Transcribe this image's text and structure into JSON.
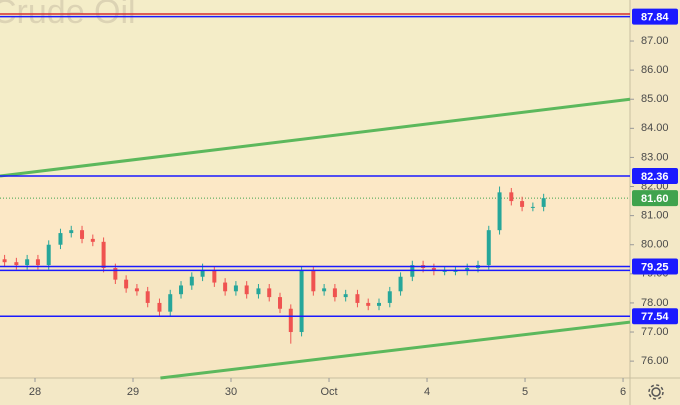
{
  "chart_data": {
    "type": "candlestick",
    "watermark": "Crude Oil",
    "xlim": [
      -0.357,
      6.071
    ],
    "ylim": [
      75.42,
      88.41
    ],
    "xticks": [
      {
        "value": 0,
        "label": "28"
      },
      {
        "value": 1,
        "label": "29"
      },
      {
        "value": 2,
        "label": "30"
      },
      {
        "value": 3,
        "label": "Oct"
      },
      {
        "value": 4,
        "label": "4"
      },
      {
        "value": 5,
        "label": "5"
      },
      {
        "value": 6,
        "label": "6"
      }
    ],
    "yticks": [
      {
        "value": 76,
        "label": "76.00"
      },
      {
        "value": 77,
        "label": "77.00"
      },
      {
        "value": 78,
        "label": "78.00"
      },
      {
        "value": 79,
        "label": "79.00"
      },
      {
        "value": 80,
        "label": "80.00"
      },
      {
        "value": 81,
        "label": "81.00"
      },
      {
        "value": 82,
        "label": "82.00"
      },
      {
        "value": 83,
        "label": "83.00"
      },
      {
        "value": 84,
        "label": "84.00"
      },
      {
        "value": 85,
        "label": "85.00"
      },
      {
        "value": 86,
        "label": "86.00"
      },
      {
        "value": 87,
        "label": "87.00"
      }
    ],
    "up_color": "#26a69a",
    "down_color": "#ef5350",
    "x": [
      -0.31,
      -0.19,
      -0.08,
      0.03,
      0.14,
      0.26,
      0.37,
      0.48,
      0.59,
      0.7,
      0.82,
      0.93,
      1.04,
      1.15,
      1.27,
      1.38,
      1.49,
      1.6,
      1.71,
      1.83,
      1.94,
      2.05,
      2.16,
      2.28,
      2.39,
      2.5,
      2.61,
      2.72,
      2.84,
      2.95,
      3.06,
      3.17,
      3.29,
      3.4,
      3.51,
      3.62,
      3.73,
      3.85,
      3.96,
      4.07,
      4.18,
      4.29,
      4.41,
      4.52,
      4.63,
      4.74,
      4.86,
      4.97,
      5.08,
      5.19
    ],
    "open": [
      79.5,
      79.4,
      79.3,
      79.5,
      79.3,
      80.0,
      80.4,
      80.5,
      80.2,
      80.1,
      79.2,
      78.8,
      78.5,
      78.4,
      78.0,
      77.7,
      78.3,
      78.6,
      78.9,
      79.1,
      78.7,
      78.4,
      78.6,
      78.3,
      78.5,
      78.2,
      77.8,
      77.0,
      79.1,
      78.4,
      78.5,
      78.2,
      78.3,
      78.0,
      77.9,
      78.0,
      78.4,
      78.9,
      79.3,
      79.2,
      79.1,
      79.1,
      79.1,
      79.2,
      79.3,
      80.5,
      81.8,
      81.5,
      81.3,
      81.3
    ],
    "high": [
      79.65,
      79.55,
      79.65,
      79.65,
      80.15,
      80.55,
      80.65,
      80.65,
      80.35,
      80.25,
      79.35,
      78.95,
      78.65,
      78.55,
      78.15,
      78.45,
      78.75,
      79.05,
      79.35,
      79.25,
      78.85,
      78.75,
      78.75,
      78.65,
      78.65,
      78.35,
      77.95,
      79.25,
      79.25,
      78.65,
      78.65,
      78.45,
      78.45,
      78.15,
      78.15,
      78.55,
      79.05,
      79.45,
      79.45,
      79.35,
      79.25,
      79.25,
      79.35,
      79.45,
      80.65,
      82.0,
      81.95,
      81.65,
      81.45,
      81.75
    ],
    "low": [
      79.25,
      79.15,
      79.15,
      79.15,
      79.15,
      79.85,
      80.25,
      80.05,
      79.95,
      79.05,
      78.65,
      78.35,
      78.25,
      77.85,
      77.55,
      77.55,
      78.15,
      78.45,
      78.75,
      78.55,
      78.25,
      78.25,
      78.15,
      78.15,
      78.05,
      77.65,
      76.6,
      76.85,
      78.25,
      78.25,
      78.05,
      78.05,
      77.85,
      77.75,
      77.75,
      77.85,
      78.25,
      78.75,
      79.05,
      78.95,
      78.95,
      78.95,
      78.95,
      79.05,
      79.15,
      80.35,
      81.35,
      81.15,
      81.15,
      81.15
    ],
    "close": [
      79.4,
      79.3,
      79.5,
      79.3,
      80.0,
      80.4,
      80.5,
      80.2,
      80.1,
      79.2,
      78.8,
      78.5,
      78.4,
      78.0,
      77.7,
      78.3,
      78.6,
      78.9,
      79.1,
      78.7,
      78.4,
      78.6,
      78.3,
      78.5,
      78.2,
      77.8,
      77.0,
      79.1,
      78.4,
      78.5,
      78.2,
      78.3,
      78.0,
      77.9,
      78.0,
      78.4,
      78.9,
      79.3,
      79.2,
      79.1,
      79.1,
      79.1,
      79.2,
      79.3,
      80.5,
      81.8,
      81.5,
      81.3,
      81.3,
      81.6
    ],
    "levels": [
      {
        "value": 87.93,
        "color": "#d32f2f"
      },
      {
        "value": 87.84,
        "label": 87.84,
        "color": "#1a1aff"
      },
      {
        "value": 82.36,
        "label": 82.36,
        "color": "#1a1aff"
      },
      {
        "value": 79.25,
        "label": 79.25,
        "color": "#1a1aff"
      },
      {
        "value": 79.12,
        "color": "#1a1aff"
      },
      {
        "value": 77.54,
        "label": 77.54,
        "color": "#1a1aff"
      }
    ],
    "trendlines": [
      {
        "x": [
          -0.357,
          6.071
        ],
        "values": [
          82.36,
          85.0
        ],
        "color": "#5cb85c"
      },
      {
        "x": [
          1.28,
          6.071
        ],
        "values": [
          75.42,
          77.34
        ],
        "color": "#5cb85c"
      }
    ],
    "last_price": {
      "value": 81.6,
      "label": "81.60",
      "color": "#3fa34d"
    }
  }
}
